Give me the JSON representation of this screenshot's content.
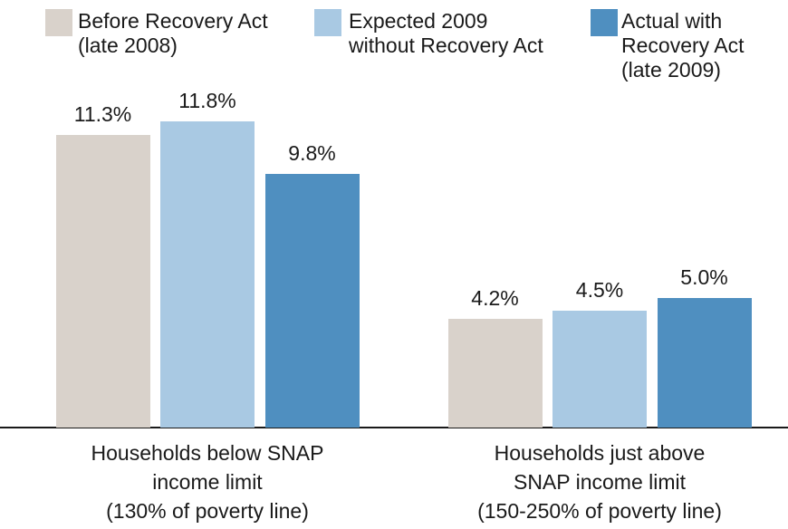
{
  "chart_data": {
    "type": "bar",
    "categories": [
      "Households below SNAP\nincome limit\n(130% of poverty line)",
      "Households just above\nSNAP income limit\n(150-250% of poverty line)"
    ],
    "series": [
      {
        "name": "Before Recovery Act\n(late 2008)",
        "color": "#d9d2cb",
        "values": [
          11.3,
          4.2
        ],
        "value_labels": [
          "11.3%",
          "4.2%"
        ]
      },
      {
        "name": "Expected 2009\nwithout Recovery Act",
        "color": "#a9c9e3",
        "values": [
          11.8,
          4.5
        ],
        "value_labels": [
          "11.8%",
          "4.5%"
        ]
      },
      {
        "name": "Actual with\nRecovery Act\n(late 2009)",
        "color": "#4f8fc0",
        "values": [
          9.8,
          5.0
        ],
        "value_labels": [
          "9.8%",
          "5.0%"
        ]
      }
    ],
    "ylim": [
      0,
      16.5
    ]
  }
}
